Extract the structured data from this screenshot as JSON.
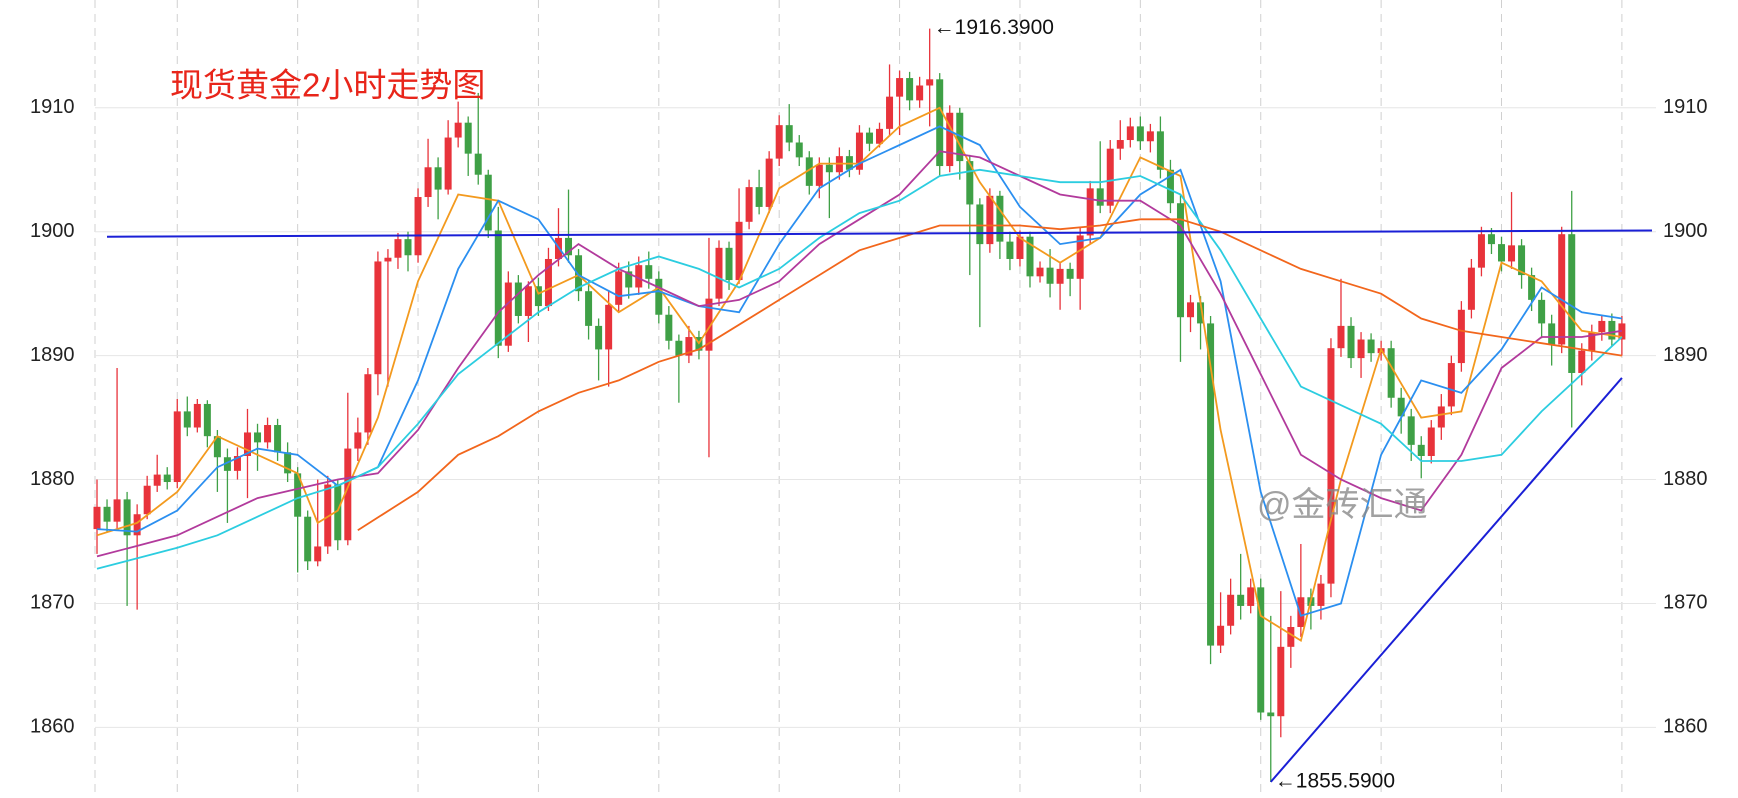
{
  "chart_data": {
    "type": "candlestick",
    "title": "现货黄金2小时走势图",
    "watermark": "@金砖汇通",
    "up_color": "#e8333b",
    "down_color": "#3fa046",
    "xlim": [
      -0.2,
      155.4
    ],
    "ylim": [
      1854.3,
      1918.7
    ],
    "yticks": [
      1860,
      1870,
      1880,
      1890,
      1900,
      1910
    ],
    "xticks": [
      8,
      20,
      32,
      44,
      56,
      68,
      80,
      92,
      104,
      116,
      128,
      140,
      152
    ],
    "grid": true,
    "open": [
      1876.0,
      1877.8,
      1876.6,
      1878.4,
      1875.5,
      1877.2,
      1879.5,
      1880.4,
      1879.8,
      1885.5,
      1884.2,
      1886.1,
      1883.5,
      1881.8,
      1880.7,
      1881.9,
      1883.8,
      1883.0,
      1884.4,
      1882.2,
      1880.5,
      1877.0,
      1873.4,
      1874.6,
      1879.6,
      1875.1,
      1882.5,
      1883.8,
      1888.5,
      1897.6,
      1897.9,
      1899.4,
      1898.1,
      1902.8,
      1905.2,
      1903.4,
      1907.6,
      1908.8,
      1906.3,
      1904.6,
      1900.1,
      1890.8,
      1895.9,
      1893.2,
      1895.6,
      1894.0,
      1897.8,
      1899.5,
      1898.1,
      1895.2,
      1892.4,
      1890.5,
      1894.1,
      1896.8,
      1895.5,
      1897.3,
      1896.2,
      1893.3,
      1891.2,
      1890.0,
      1891.5,
      1890.4,
      1894.6,
      1898.7,
      1896.1,
      1900.8,
      1903.6,
      1902.0,
      1905.9,
      1908.6,
      1907.2,
      1906.0,
      1903.7,
      1905.4,
      1904.8,
      1906.1,
      1905.0,
      1908.0,
      1907.1,
      1908.3,
      1910.9,
      1912.4,
      1910.6,
      1911.8,
      1912.3,
      1905.3,
      1909.6,
      1905.7,
      1902.2,
      1899.0,
      1902.9,
      1899.2,
      1897.8,
      1899.6,
      1896.4,
      1897.1,
      1895.8,
      1897.0,
      1896.2,
      1899.7,
      1903.5,
      1902.1,
      1906.7,
      1907.4,
      1908.5,
      1907.3,
      1908.1,
      1905.0,
      1902.3,
      1893.1,
      1894.3,
      1892.6,
      1866.6,
      1868.2,
      1870.7,
      1869.8,
      1871.3,
      1861.2,
      1860.9,
      1866.5,
      1868.1,
      1870.5,
      1869.8,
      1871.6,
      1890.6,
      1892.4,
      1889.8,
      1891.3,
      1890.2,
      1890.6,
      1886.6,
      1885.1,
      1882.8,
      1881.9,
      1884.2,
      1885.9,
      1889.4,
      1893.7,
      1897.1,
      1899.8,
      1899.0,
      1897.6,
      1898.9,
      1896.5,
      1894.5,
      1892.6,
      1890.9,
      1899.8,
      1888.6,
      1890.4,
      1891.9,
      1892.8,
      1891.3
    ],
    "high": [
      1880,
      1878.4,
      1889,
      1879,
      1878,
      1880.3,
      1882,
      1881,
      1886.5,
      1886.7,
      1886.5,
      1886.4,
      1884,
      1882.5,
      1882.6,
      1885.7,
      1884.5,
      1885,
      1884.9,
      1883,
      1881,
      1877.5,
      1880,
      1880.3,
      1880,
      1887,
      1885,
      1889,
      1898.4,
      1898.6,
      1899.9,
      1900,
      1903.5,
      1907.5,
      1906,
      1909,
      1910.5,
      1909.3,
      1911.2,
      1905,
      1902,
      1896.8,
      1896.5,
      1896,
      1896.3,
      1898.7,
      1901.9,
      1903.4,
      1898.6,
      1896,
      1893,
      1895.3,
      1897.5,
      1897.6,
      1898,
      1898.4,
      1896.8,
      1894,
      1891.7,
      1892.4,
      1892,
      1899.5,
      1899.3,
      1899.2,
      1903.5,
      1904.2,
      1905,
      1906.5,
      1909.4,
      1910.3,
      1907.8,
      1906.5,
      1906,
      1906,
      1906.8,
      1906.6,
      1908.6,
      1908.4,
      1908.8,
      1913.5,
      1913,
      1912.9,
      1912.5,
      1916.39,
      1912.8,
      1910.2,
      1910,
      1906.2,
      1902.7,
      1903.5,
      1903.3,
      1900,
      1900.1,
      1900,
      1897.6,
      1898.6,
      1897.5,
      1897.5,
      1900.3,
      1904.1,
      1907.3,
      1907.4,
      1909,
      1909.2,
      1909.3,
      1908.7,
      1909.3,
      1905.8,
      1903,
      1894.9,
      1894.8,
      1893.2,
      1870.9,
      1872,
      1874,
      1872,
      1872,
      1869,
      1871,
      1869,
      1874.8,
      1871.2,
      1872.3,
      1891.4,
      1896.2,
      1893.1,
      1891.9,
      1891.8,
      1891.2,
      1891.2,
      1887.4,
      1885.7,
      1883.5,
      1884.8,
      1886.9,
      1890,
      1894.4,
      1897.8,
      1900.4,
      1900.3,
      1899.6,
      1903.2,
      1899.4,
      1897.1,
      1895.1,
      1893.3,
      1900.4,
      1903.3,
      1891,
      1892.5,
      1893.3,
      1893.4,
      1893.2
    ],
    "low": [
      1874,
      1875.8,
      1876,
      1869.8,
      1869.5,
      1876.8,
      1879,
      1879.2,
      1879.3,
      1883.5,
      1883.8,
      1882.6,
      1879,
      1876.5,
      1880,
      1878.5,
      1880.7,
      1882.5,
      1881.5,
      1879.8,
      1872.5,
      1872.7,
      1873,
      1874,
      1874.3,
      1874.7,
      1881.5,
      1882.8,
      1886.8,
      1887.5,
      1897,
      1896.8,
      1897.5,
      1902,
      1901,
      1903,
      1906.8,
      1904.5,
      1903.8,
      1899.5,
      1889.8,
      1890.3,
      1892.6,
      1891.1,
      1893.2,
      1893.6,
      1897.2,
      1897.5,
      1894.4,
      1891.3,
      1888,
      1887.5,
      1893.6,
      1894.6,
      1894.9,
      1895.4,
      1892.6,
      1890.5,
      1886.2,
      1889.4,
      1889.7,
      1881.8,
      1894,
      1895.3,
      1895.8,
      1900.2,
      1901.4,
      1901.5,
      1905.3,
      1906.5,
      1905.3,
      1903,
      1902.7,
      1901.1,
      1904.2,
      1904.4,
      1904.6,
      1906.5,
      1906.8,
      1907.7,
      1907.8,
      1909.8,
      1910,
      1908.5,
      1904.5,
      1904.8,
      1904.2,
      1896.5,
      1892.3,
      1898.3,
      1897.8,
      1896.9,
      1897.2,
      1895.5,
      1895.9,
      1894.7,
      1893.7,
      1894.8,
      1893.7,
      1899,
      1901.5,
      1901.5,
      1905.8,
      1906.8,
      1906.6,
      1906.4,
      1904.3,
      1901.5,
      1889.5,
      1891.9,
      1890.5,
      1865.1,
      1866,
      1867.5,
      1868.7,
      1869.2,
      1860.6,
      1855.59,
      1859.2,
      1864.8,
      1867.3,
      1867.9,
      1868.7,
      1870.5,
      1889.9,
      1889,
      1888.2,
      1889.5,
      1889.6,
      1885.8,
      1883.7,
      1881.5,
      1880.1,
      1881.3,
      1883.2,
      1885.2,
      1888.7,
      1893,
      1896.4,
      1898.2,
      1896.8,
      1897,
      1895.4,
      1893.6,
      1891.4,
      1889.2,
      1890.2,
      1884.2,
      1887.6,
      1889.6,
      1891.2,
      1890.7,
      1890
    ],
    "close": [
      1877.8,
      1876.6,
      1878.4,
      1875.5,
      1877.2,
      1879.5,
      1880.4,
      1879.8,
      1885.5,
      1884.2,
      1886.1,
      1883.5,
      1881.8,
      1880.7,
      1881.9,
      1883.8,
      1883.0,
      1884.4,
      1882.2,
      1880.5,
      1877.0,
      1873.4,
      1874.6,
      1879.6,
      1875.1,
      1882.5,
      1883.8,
      1888.5,
      1897.6,
      1897.9,
      1899.4,
      1898.1,
      1902.8,
      1905.2,
      1903.4,
      1907.6,
      1908.8,
      1906.3,
      1904.6,
      1900.1,
      1890.8,
      1895.9,
      1893.2,
      1895.6,
      1894.0,
      1897.8,
      1899.5,
      1898.1,
      1895.2,
      1892.4,
      1890.5,
      1894.1,
      1896.8,
      1895.5,
      1897.3,
      1896.2,
      1893.3,
      1891.2,
      1890.0,
      1891.5,
      1890.4,
      1894.6,
      1898.7,
      1896.1,
      1900.8,
      1903.6,
      1902.0,
      1905.9,
      1908.6,
      1907.2,
      1906.0,
      1903.7,
      1905.4,
      1904.8,
      1906.1,
      1905.0,
      1908.0,
      1907.1,
      1908.3,
      1910.9,
      1912.4,
      1910.6,
      1911.8,
      1912.3,
      1905.3,
      1909.6,
      1905.7,
      1902.2,
      1899.0,
      1902.9,
      1899.2,
      1897.8,
      1899.6,
      1896.4,
      1897.1,
      1895.8,
      1897.0,
      1896.2,
      1899.7,
      1903.5,
      1902.1,
      1906.7,
      1907.4,
      1908.5,
      1907.3,
      1908.1,
      1905.0,
      1902.3,
      1893.1,
      1894.3,
      1892.6,
      1866.6,
      1868.2,
      1870.7,
      1869.8,
      1871.3,
      1861.2,
      1860.9,
      1866.5,
      1868.1,
      1870.5,
      1869.8,
      1871.6,
      1890.6,
      1892.4,
      1889.8,
      1891.3,
      1890.2,
      1890.6,
      1886.6,
      1885.1,
      1882.8,
      1881.9,
      1884.2,
      1885.9,
      1889.4,
      1893.7,
      1897.1,
      1899.8,
      1899.0,
      1897.6,
      1898.9,
      1896.5,
      1894.5,
      1892.6,
      1890.9,
      1899.8,
      1888.6,
      1890.4,
      1891.9,
      1892.8,
      1891.3,
      1892.6
    ],
    "series": [
      {
        "color": "#f39a1e",
        "x": [
          0,
          4,
          8,
          12,
          16,
          20,
          22,
          24,
          28,
          32,
          36,
          40,
          44,
          48,
          52,
          56,
          60,
          64,
          68,
          72,
          76,
          80,
          84,
          88,
          92,
          96,
          100,
          104,
          108,
          112,
          116,
          120,
          124,
          128,
          132,
          136,
          140,
          144,
          148,
          152
        ],
        "values": [
          1875.5,
          1876.5,
          1879,
          1883.5,
          1882,
          1880.5,
          1876.5,
          1877.5,
          1885,
          1896,
          1903,
          1902.5,
          1895,
          1896.5,
          1893.5,
          1895.5,
          1891,
          1896,
          1903.5,
          1905.5,
          1905.5,
          1908.5,
          1910,
          1904,
          1899.5,
          1897.5,
          1899.5,
          1906,
          1904.5,
          1884,
          1869,
          1867,
          1880,
          1890.5,
          1885,
          1885.5,
          1897.5,
          1896,
          1892,
          1891.5
        ]
      },
      {
        "color": "#2b8ff0",
        "x": [
          0,
          4,
          8,
          12,
          16,
          20,
          24,
          28,
          32,
          36,
          40,
          44,
          48,
          52,
          56,
          60,
          64,
          68,
          72,
          76,
          80,
          84,
          88,
          92,
          96,
          100,
          104,
          108,
          112,
          116,
          120,
          124,
          128,
          132,
          136,
          140,
          144,
          148,
          152
        ],
        "values": [
          1876,
          1875.8,
          1877.5,
          1881,
          1882.5,
          1882,
          1879.5,
          1881,
          1888,
          1897,
          1902.5,
          1901,
          1896.5,
          1894.8,
          1895.2,
          1894,
          1893.5,
          1899,
          1903.5,
          1905.5,
          1907,
          1908.5,
          1907,
          1902,
          1899,
          1899.5,
          1903,
          1905,
          1896,
          1879,
          1869,
          1870,
          1882,
          1888,
          1887,
          1890.5,
          1895.5,
          1893.5,
          1893
        ]
      },
      {
        "color": "#b23a9c",
        "x": [
          0,
          8,
          16,
          24,
          28,
          32,
          36,
          40,
          44,
          48,
          52,
          56,
          60,
          64,
          68,
          72,
          76,
          80,
          84,
          88,
          92,
          96,
          100,
          104,
          108,
          112,
          116,
          120,
          124,
          128,
          132,
          136,
          140,
          144,
          148,
          152
        ],
        "values": [
          1873.8,
          1875.5,
          1878.5,
          1880,
          1880.5,
          1884,
          1889,
          1893.5,
          1896.5,
          1899,
          1897,
          1895.5,
          1894,
          1894.5,
          1896,
          1899,
          1901,
          1903,
          1906.5,
          1906,
          1904.5,
          1903,
          1902.5,
          1902.5,
          1900.5,
          1895,
          1888.5,
          1882,
          1880,
          1878.5,
          1877.5,
          1882,
          1889,
          1891.5,
          1891.5,
          1892
        ]
      },
      {
        "color": "#2ccde0",
        "x": [
          0,
          8,
          12,
          16,
          20,
          24,
          28,
          32,
          36,
          40,
          44,
          48,
          52,
          56,
          60,
          64,
          68,
          72,
          76,
          80,
          84,
          88,
          92,
          96,
          100,
          104,
          108,
          112,
          116,
          120,
          124,
          128,
          132,
          136,
          140,
          144,
          148,
          152
        ],
        "values": [
          1872.8,
          1874.5,
          1875.5,
          1877,
          1878.5,
          1879.5,
          1881,
          1884.5,
          1888.5,
          1891,
          1893.5,
          1895.5,
          1897,
          1898,
          1897,
          1895.5,
          1897,
          1899.5,
          1901.5,
          1902.5,
          1904.5,
          1905,
          1904.5,
          1904,
          1904,
          1904.5,
          1903,
          1898.5,
          1893,
          1887.5,
          1886,
          1884.5,
          1881.5,
          1881.5,
          1882,
          1885.5,
          1888.5,
          1891.5
        ]
      },
      {
        "color": "#f2661c",
        "x": [
          26,
          32,
          36,
          40,
          44,
          48,
          52,
          56,
          60,
          64,
          68,
          72,
          76,
          80,
          84,
          88,
          92,
          96,
          100,
          104,
          108,
          112,
          116,
          120,
          124,
          128,
          132,
          136,
          140,
          144,
          148,
          152
        ],
        "values": [
          1875.9,
          1879,
          1882,
          1883.5,
          1885.5,
          1887,
          1888,
          1889.5,
          1890.5,
          1892.5,
          1894.5,
          1896.5,
          1898.5,
          1899.5,
          1900.5,
          1900.5,
          1900.5,
          1900.2,
          1900.5,
          1901,
          1901,
          1900,
          1898.5,
          1897,
          1896,
          1895,
          1893,
          1892,
          1891.5,
          1891,
          1890.5,
          1890
        ]
      }
    ],
    "trendlines": [
      {
        "color": "#1a1fd6",
        "x": [
          1,
          155
        ],
        "values": [
          1899.6,
          1900.1
        ]
      },
      {
        "color": "#1a1fd6",
        "x": [
          117,
          152
        ],
        "values": [
          1855.6,
          1888.2
        ]
      }
    ],
    "annotations": [
      {
        "x": 83,
        "value": 1916.39,
        "label": "←1916.3900"
      },
      {
        "x": 117,
        "value": 1855.59,
        "label": "←1855.5900"
      }
    ]
  }
}
